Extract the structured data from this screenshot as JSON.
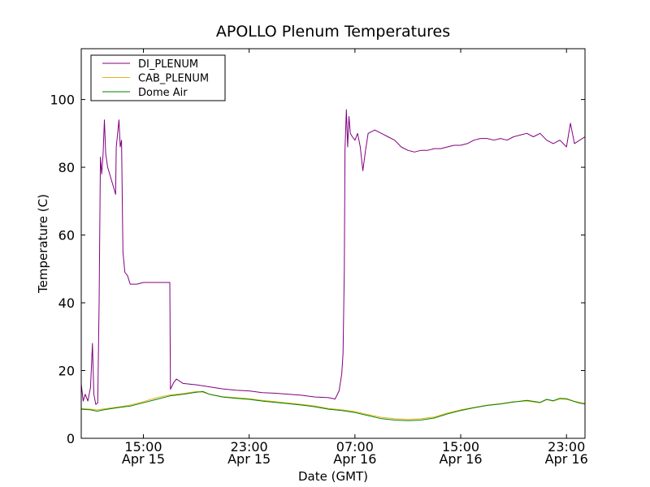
{
  "chart_data": {
    "type": "line",
    "title": "APOLLO Plenum Temperatures",
    "xlabel": "Date (GMT)",
    "ylabel": "Temperature (C)",
    "x_unit": "hours since Apr 15 00:00 GMT",
    "xlim": [
      10.3,
      48.4
    ],
    "ylim": [
      0,
      115
    ],
    "y_ticks": [
      0,
      20,
      40,
      60,
      80,
      100
    ],
    "x_ticks": [
      {
        "x": 15,
        "time": "15:00",
        "date": "Apr 15"
      },
      {
        "x": 23,
        "time": "23:00",
        "date": "Apr 15"
      },
      {
        "x": 31,
        "time": "07:00",
        "date": "Apr 16"
      },
      {
        "x": 39,
        "time": "15:00",
        "date": "Apr 16"
      },
      {
        "x": 47,
        "time": "23:00",
        "date": "Apr 16"
      }
    ],
    "grid": false,
    "legend_position": "top-left",
    "series": [
      {
        "name": "DI_PLENUM",
        "color": "#800080",
        "points": [
          [
            10.3,
            16
          ],
          [
            10.45,
            11
          ],
          [
            10.6,
            13
          ],
          [
            10.8,
            11
          ],
          [
            11.0,
            15
          ],
          [
            11.15,
            28
          ],
          [
            11.25,
            13
          ],
          [
            11.4,
            10
          ],
          [
            11.55,
            10.5
          ],
          [
            11.65,
            40
          ],
          [
            11.75,
            83
          ],
          [
            11.85,
            78
          ],
          [
            11.95,
            84
          ],
          [
            12.05,
            94
          ],
          [
            12.15,
            84
          ],
          [
            12.3,
            80
          ],
          [
            12.45,
            78
          ],
          [
            12.6,
            76
          ],
          [
            12.75,
            74
          ],
          [
            12.9,
            72
          ],
          [
            12.95,
            86
          ],
          [
            13.05,
            90
          ],
          [
            13.15,
            94
          ],
          [
            13.25,
            86
          ],
          [
            13.35,
            88
          ],
          [
            13.45,
            55
          ],
          [
            13.6,
            49
          ],
          [
            13.8,
            48
          ],
          [
            14.0,
            45.5
          ],
          [
            14.5,
            45.5
          ],
          [
            15.0,
            46
          ],
          [
            15.5,
            46
          ],
          [
            16.0,
            46
          ],
          [
            16.5,
            46
          ],
          [
            17.0,
            46
          ],
          [
            17.05,
            14.5
          ],
          [
            17.3,
            16.5
          ],
          [
            17.5,
            17.5
          ],
          [
            18.0,
            16.2
          ],
          [
            19.0,
            15.8
          ],
          [
            20.0,
            15.2
          ],
          [
            21.0,
            14.6
          ],
          [
            22.0,
            14.2
          ],
          [
            23.0,
            14
          ],
          [
            24.0,
            13.5
          ],
          [
            25.0,
            13.3
          ],
          [
            26.0,
            13
          ],
          [
            27.0,
            12.7
          ],
          [
            28.0,
            12.2
          ],
          [
            29.0,
            12
          ],
          [
            29.5,
            11.6
          ],
          [
            29.8,
            14
          ],
          [
            30.0,
            19
          ],
          [
            30.1,
            25
          ],
          [
            30.2,
            50
          ],
          [
            30.25,
            85
          ],
          [
            30.35,
            97
          ],
          [
            30.45,
            86
          ],
          [
            30.55,
            95
          ],
          [
            30.65,
            90
          ],
          [
            30.8,
            89
          ],
          [
            31.0,
            88
          ],
          [
            31.2,
            90
          ],
          [
            31.4,
            86
          ],
          [
            31.6,
            79
          ],
          [
            31.8,
            85
          ],
          [
            32.0,
            90
          ],
          [
            32.5,
            91
          ],
          [
            33.0,
            90
          ],
          [
            33.5,
            89
          ],
          [
            34.0,
            88
          ],
          [
            34.5,
            86
          ],
          [
            35.0,
            85
          ],
          [
            35.5,
            84.5
          ],
          [
            36.0,
            85
          ],
          [
            36.5,
            85
          ],
          [
            37.0,
            85.5
          ],
          [
            37.5,
            85.5
          ],
          [
            38.0,
            86
          ],
          [
            38.5,
            86.5
          ],
          [
            39.0,
            86.5
          ],
          [
            39.5,
            87
          ],
          [
            40.0,
            88
          ],
          [
            40.5,
            88.5
          ],
          [
            41.0,
            88.5
          ],
          [
            41.5,
            88
          ],
          [
            42.0,
            88.5
          ],
          [
            42.5,
            88
          ],
          [
            43.0,
            89
          ],
          [
            43.5,
            89.5
          ],
          [
            44.0,
            90
          ],
          [
            44.5,
            89
          ],
          [
            45.0,
            90
          ],
          [
            45.5,
            88
          ],
          [
            46.0,
            87
          ],
          [
            46.5,
            88
          ],
          [
            47.0,
            86
          ],
          [
            47.3,
            93
          ],
          [
            47.6,
            87
          ],
          [
            48.0,
            88
          ],
          [
            48.4,
            89
          ]
        ]
      },
      {
        "name": "CAB_PLENUM",
        "color": "#e5b61b",
        "points": [
          [
            10.3,
            8.8
          ],
          [
            11.0,
            8.6
          ],
          [
            11.5,
            8.4
          ],
          [
            12.0,
            8.7
          ],
          [
            13.0,
            9.2
          ],
          [
            14.0,
            9.8
          ],
          [
            15.0,
            10.8
          ],
          [
            16.0,
            12
          ],
          [
            17.0,
            12.8
          ],
          [
            18.0,
            13.2
          ],
          [
            19.0,
            13.8
          ],
          [
            19.5,
            13.6
          ],
          [
            20.0,
            13
          ],
          [
            21.0,
            12.3
          ],
          [
            22.0,
            12
          ],
          [
            23.0,
            11.7
          ],
          [
            24.0,
            11.2
          ],
          [
            25.0,
            10.8
          ],
          [
            26.0,
            10.4
          ],
          [
            27.0,
            10
          ],
          [
            28.0,
            9.5
          ],
          [
            29.0,
            8.8
          ],
          [
            30.0,
            8.4
          ],
          [
            31.0,
            7.9
          ],
          [
            32.0,
            7
          ],
          [
            33.0,
            6.2
          ],
          [
            34.0,
            5.8
          ],
          [
            35.0,
            5.6
          ],
          [
            36.0,
            5.8
          ],
          [
            37.0,
            6.3
          ],
          [
            38.0,
            7.5
          ],
          [
            39.0,
            8.4
          ],
          [
            40.0,
            9.1
          ],
          [
            41.0,
            9.8
          ],
          [
            42.0,
            10.2
          ],
          [
            43.0,
            10.8
          ],
          [
            44.0,
            11
          ],
          [
            45.0,
            10.5
          ],
          [
            45.5,
            11.4
          ],
          [
            46.0,
            11
          ],
          [
            46.5,
            11.6
          ],
          [
            47.0,
            11.5
          ],
          [
            47.5,
            11
          ],
          [
            48.0,
            10.6
          ],
          [
            48.4,
            10.3
          ]
        ]
      },
      {
        "name": "Dome Air",
        "color": "#008000",
        "points": [
          [
            10.3,
            8.6
          ],
          [
            11.0,
            8.4
          ],
          [
            11.5,
            8
          ],
          [
            12.0,
            8.4
          ],
          [
            13.0,
            9
          ],
          [
            14.0,
            9.5
          ],
          [
            15.0,
            10.5
          ],
          [
            16.0,
            11.5
          ],
          [
            17.0,
            12.5
          ],
          [
            18.0,
            13
          ],
          [
            19.0,
            13.6
          ],
          [
            19.5,
            13.8
          ],
          [
            20.0,
            13
          ],
          [
            21.0,
            12.2
          ],
          [
            22.0,
            11.8
          ],
          [
            23.0,
            11.5
          ],
          [
            24.0,
            11
          ],
          [
            25.0,
            10.6
          ],
          [
            26.0,
            10.2
          ],
          [
            27.0,
            9.8
          ],
          [
            28.0,
            9.3
          ],
          [
            29.0,
            8.6
          ],
          [
            30.0,
            8.2
          ],
          [
            31.0,
            7.6
          ],
          [
            32.0,
            6.7
          ],
          [
            33.0,
            5.8
          ],
          [
            34.0,
            5.4
          ],
          [
            35.0,
            5.2
          ],
          [
            36.0,
            5.4
          ],
          [
            37.0,
            6
          ],
          [
            38.0,
            7.2
          ],
          [
            39.0,
            8.2
          ],
          [
            40.0,
            9
          ],
          [
            41.0,
            9.7
          ],
          [
            42.0,
            10.1
          ],
          [
            43.0,
            10.7
          ],
          [
            44.0,
            11.2
          ],
          [
            45.0,
            10.6
          ],
          [
            45.5,
            11.5
          ],
          [
            46.0,
            11.1
          ],
          [
            46.5,
            11.8
          ],
          [
            47.0,
            11.7
          ],
          [
            47.5,
            11
          ],
          [
            48.0,
            10.4
          ],
          [
            48.4,
            10.1
          ]
        ]
      }
    ]
  }
}
